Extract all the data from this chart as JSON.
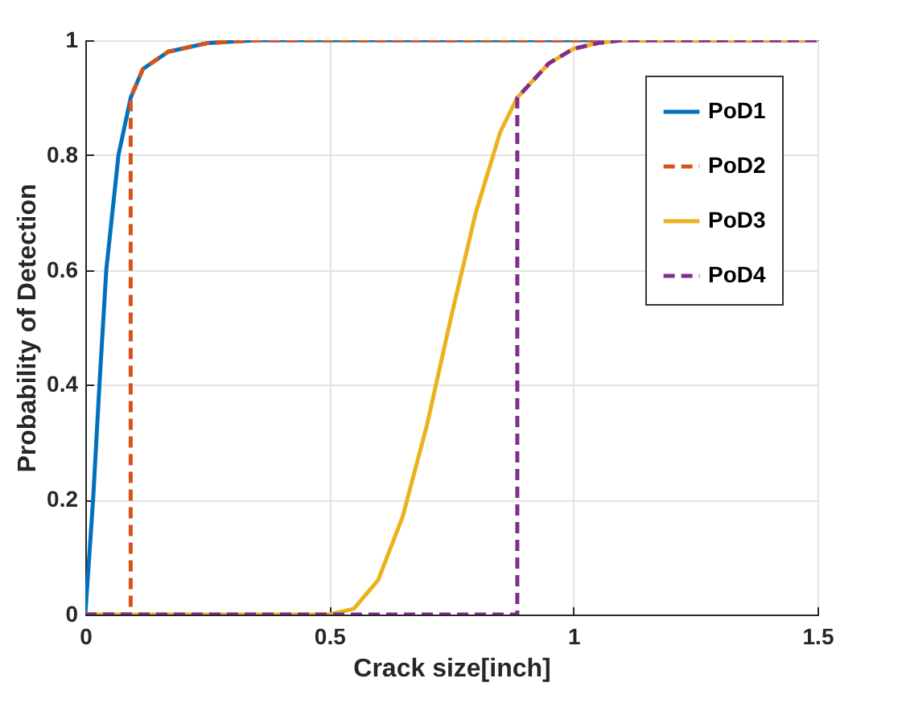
{
  "chart_data": {
    "type": "line",
    "xlabel": "Crack size[inch]",
    "ylabel": "Probability of Detection",
    "xlim": [
      0,
      1.5
    ],
    "xticks": [
      0,
      0.5,
      1,
      1.5
    ],
    "ylim": [
      0,
      1
    ],
    "yticks": [
      0,
      0.2,
      0.4,
      0.6,
      0.8,
      1
    ],
    "grid": true,
    "legend": "top right",
    "marker": "none",
    "series": [
      {
        "name": "PoD1",
        "color": "#0072bd",
        "line_style": "solid",
        "x": [
          0,
          0.016,
          0.029,
          0.043,
          0.068,
          0.093,
          0.118,
          0.17,
          0.25,
          0.35,
          0.5,
          1,
          1.5
        ],
        "values": [
          0,
          0.2,
          0.4,
          0.6,
          0.8,
          0.9,
          0.95,
          0.98,
          0.995,
          1,
          1,
          1,
          1
        ]
      },
      {
        "name": "PoD2",
        "color": "#d95319",
        "line_style": "dashed",
        "x": [
          0,
          0.093,
          0.093,
          0.118,
          0.17,
          0.25,
          0.35,
          0.5,
          1,
          1.5
        ],
        "values": [
          0,
          0,
          0.9,
          0.95,
          0.98,
          0.995,
          1,
          1,
          1,
          1
        ]
      },
      {
        "name": "PoD3",
        "color": "#edb120",
        "line_style": "solid",
        "x": [
          0,
          0.5,
          0.55,
          0.6,
          0.65,
          0.7,
          0.75,
          0.8,
          0.85,
          0.885,
          0.95,
          1,
          1.05,
          1.1,
          1.5
        ],
        "values": [
          0,
          0,
          0.01,
          0.06,
          0.17,
          0.33,
          0.52,
          0.7,
          0.84,
          0.9,
          0.96,
          0.985,
          0.995,
          1,
          1
        ]
      },
      {
        "name": "PoD4",
        "color": "#7e2f8e",
        "line_style": "dashed",
        "x": [
          0,
          0.885,
          0.885,
          0.95,
          1,
          1.05,
          1.1,
          1.5
        ],
        "values": [
          0,
          0,
          0.9,
          0.96,
          0.985,
          0.995,
          1,
          1
        ]
      }
    ]
  }
}
